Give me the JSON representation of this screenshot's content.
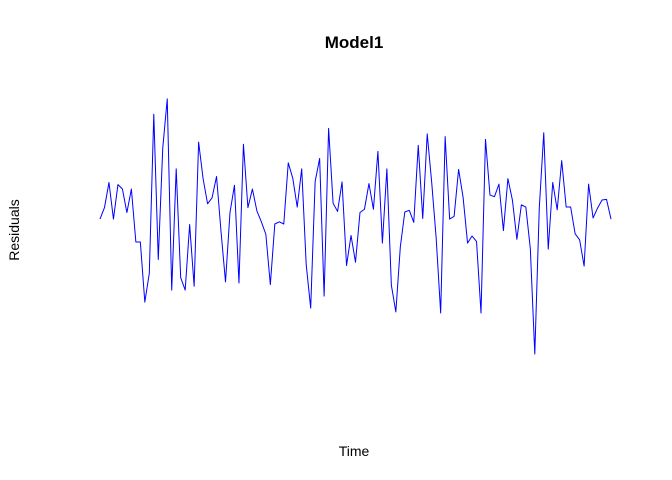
{
  "chart_data": {
    "type": "line",
    "title": "Model1",
    "xlabel": "Time",
    "ylabel": "Residuals",
    "axes_visible": false,
    "grid": false,
    "legend": "none",
    "ylim": [
      -2.8,
      2.4
    ],
    "series": [
      {
        "color": "#0000ff",
        "values": [
          0,
          0.21,
          0.67,
          0,
          0.63,
          0.55,
          0.12,
          0.55,
          -0.42,
          -0.42,
          -1.52,
          -0.99,
          1.92,
          -0.74,
          1.3,
          2.2,
          -1.3,
          0.92,
          -1.07,
          -1.3,
          -0.1,
          -1.23,
          1.41,
          0.74,
          0.28,
          0.39,
          0.78,
          -0.23,
          -1.15,
          0.12,
          0.62,
          -1.17,
          1.37,
          0.21,
          0.55,
          0.15,
          -0.05,
          -0.28,
          -1.2,
          -0.09,
          -0.05,
          -0.09,
          1.03,
          0.75,
          0.22,
          0.92,
          -0.83,
          -1.63,
          0.69,
          1.11,
          -1.41,
          1.66,
          0.29,
          0.14,
          0.68,
          -0.85,
          -0.3,
          -0.79,
          0.12,
          0.18,
          0.65,
          0.18,
          1.24,
          -0.44,
          0.92,
          -1.21,
          -1.7,
          -0.51,
          0.13,
          0.16,
          -0.06,
          1.35,
          0.01,
          1.56,
          0.67,
          -0.35,
          -1.72,
          1.51,
          0,
          0.05,
          0.91,
          0.4,
          -0.44,
          -0.31,
          -0.41,
          -1.72,
          1.46,
          0.44,
          0.41,
          0.64,
          -0.21,
          0.74,
          0.35,
          -0.37,
          0.26,
          0.22,
          -0.54,
          -2.47,
          0.2,
          1.58,
          -0.55,
          0.67,
          0.17,
          1.07,
          0.22,
          0.22,
          -0.27,
          -0.38,
          -0.86,
          0.64,
          0.02,
          0.2,
          0.35,
          0.36,
          0
        ]
      }
    ]
  }
}
